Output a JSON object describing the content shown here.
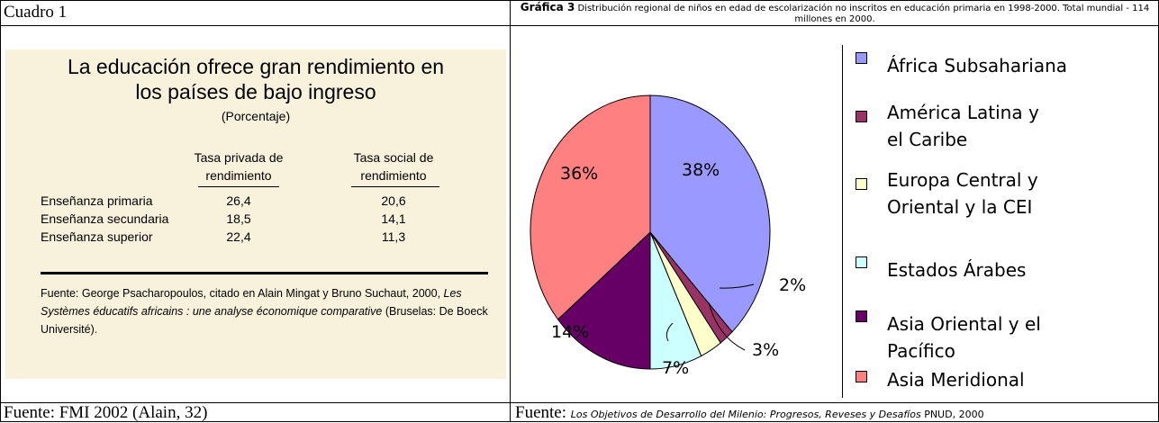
{
  "left": {
    "header": "Cuadro 1",
    "title": "La educación ofrece gran rendimiento en\nlos países de bajo ingreso",
    "subtitle": "(Porcentaje)",
    "columns": [
      "Tasa privada de\nrendimiento",
      "Tasa social de\nrendimiento"
    ],
    "rows": [
      [
        "Enseñanza primaria",
        "26,4",
        "20,6"
      ],
      [
        "Enseñanza secundaria",
        "18,5",
        "14,1"
      ],
      [
        "Enseñanza superior",
        "22,4",
        "11,3"
      ]
    ],
    "source": [
      "Fuente: George Psacharopoulos, citado en Alain Mingat y Bruno Suchaut, 2000, ",
      "Les Systèmes éducatifs africains : une analyse économique comparative",
      " (Bruselas: De Boeck Université)."
    ],
    "footer": "Fuente: FMI 2002 (Alain, 32)"
  },
  "chart_data": {
    "type": "pie",
    "title": "Gráfica 3",
    "subtitle": "Distribución regional de niños en edad de escolarización no inscritos en educación primaria en 1998-2000. Total mundial - 114 millones en 2000.",
    "categories": [
      "África Subsahariana",
      "América Latina y\nel Caribe",
      "Europa Central y\nOriental y la CEI",
      "Estados Árabes",
      "Asia Oriental y el\nPacífico",
      "Asia Meridional"
    ],
    "values": [
      38,
      2,
      3,
      7,
      14,
      36
    ],
    "value_labels": [
      "38%",
      "2%",
      "3%",
      "7%",
      "14%",
      "36%"
    ],
    "colors": [
      "#9999ff",
      "#993366",
      "#ffffcc",
      "#ccffff",
      "#660066",
      "#ff8080"
    ]
  },
  "right": {
    "footer": [
      "Fuente: ",
      "Los Objetivos de Desarrollo del Milenio: Progresos, Reveses y Desafíos",
      " PNUD, 2000"
    ]
  }
}
